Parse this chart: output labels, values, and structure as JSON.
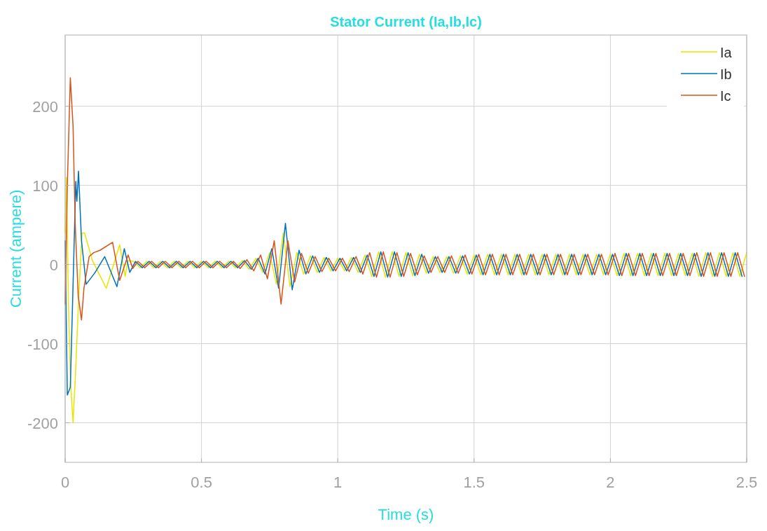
{
  "chart_data": {
    "type": "line",
    "title": "Stator Current (Ia,Ib,Ic)",
    "xlabel": "Time (s)",
    "ylabel": "Current (ampere)",
    "xlim": [
      0,
      2.5
    ],
    "ylim": [
      -250,
      290
    ],
    "xticks": [
      0,
      0.5,
      1,
      1.5,
      2,
      2.5
    ],
    "yticks": [
      -200,
      -100,
      0,
      100,
      200
    ],
    "grid": true,
    "legend": "top right",
    "series": [
      {
        "name": "Ia",
        "color": "#e6e600",
        "x": [
          0,
          0.005,
          0.012,
          0.02,
          0.029,
          0.037,
          0.05,
          0.062,
          0.071,
          0.1,
          0.151,
          0.2,
          0.22,
          0.231,
          0.25,
          0.275,
          0.3,
          0.325,
          0.35,
          0.375,
          0.4,
          0.425,
          0.45,
          0.475,
          0.5,
          0.525,
          0.55,
          0.575,
          0.6,
          0.625,
          0.65,
          0.675,
          0.7,
          0.725,
          0.75,
          0.775,
          0.8,
          0.825,
          0.85,
          0.875,
          0.9,
          0.925,
          0.95,
          0.975,
          1,
          1.025,
          1.05,
          1.075,
          1.1,
          1.125,
          1.15,
          1.175,
          1.2,
          1.225,
          1.25,
          1.275,
          1.3,
          1.325,
          1.35,
          1.375,
          1.4,
          1.425,
          1.45,
          1.475,
          1.5,
          1.525,
          1.55,
          1.575,
          1.6,
          1.625,
          1.65,
          1.675,
          1.7,
          1.725,
          1.75,
          1.775,
          1.8,
          1.825,
          1.85,
          1.875,
          1.9,
          1.925,
          1.95,
          1.975,
          2,
          2.025,
          2.05,
          2.075,
          2.1,
          2.125,
          2.15,
          2.175,
          2.2,
          2.225,
          2.25,
          2.275,
          2.3,
          2.325,
          2.35,
          2.375,
          2.4,
          2.425,
          2.45,
          2.475,
          2.5
        ],
        "values": [
          40,
          110,
          -50,
          -150,
          -200,
          -145,
          -40,
          40,
          40,
          5,
          -30,
          25,
          -15,
          5,
          4,
          -4,
          4,
          -4,
          4,
          -4,
          4,
          -4,
          4,
          -4,
          4,
          -4,
          4,
          -4,
          4,
          -4,
          5,
          -6,
          8,
          -10,
          15,
          -25,
          40,
          -28,
          15,
          -12,
          11,
          -10,
          9,
          -8,
          8,
          -8,
          9,
          -10,
          12,
          -15,
          16,
          -16,
          16,
          -15,
          15,
          -14,
          13,
          -11,
          10,
          -10,
          10,
          -11,
          11,
          -12,
          12,
          -13,
          13,
          -13,
          13,
          -13,
          13,
          -13,
          13,
          -13,
          13,
          -13,
          13,
          -13,
          13,
          -13,
          13,
          -13,
          13,
          -13,
          13,
          -14,
          14,
          -14,
          14,
          -14,
          14,
          -14,
          14,
          -14,
          14,
          -14,
          14,
          -15,
          15,
          -15,
          15,
          -15,
          15,
          -15,
          15
        ]
      },
      {
        "name": "Ib",
        "color": "#0072bd",
        "x": [
          0,
          0.008,
          0.019,
          0.031,
          0.039,
          0.043,
          0.049,
          0.06,
          0.077,
          0.11,
          0.145,
          0.19,
          0.217,
          0.237,
          0.258,
          0.283,
          0.308,
          0.333,
          0.358,
          0.383,
          0.408,
          0.433,
          0.458,
          0.483,
          0.508,
          0.533,
          0.558,
          0.583,
          0.608,
          0.633,
          0.658,
          0.683,
          0.708,
          0.733,
          0.758,
          0.783,
          0.808,
          0.833,
          0.858,
          0.883,
          0.908,
          0.933,
          0.958,
          0.983,
          1.008,
          1.033,
          1.058,
          1.083,
          1.108,
          1.133,
          1.158,
          1.183,
          1.208,
          1.233,
          1.258,
          1.283,
          1.308,
          1.333,
          1.358,
          1.383,
          1.408,
          1.433,
          1.458,
          1.483,
          1.508,
          1.533,
          1.558,
          1.583,
          1.608,
          1.633,
          1.658,
          1.683,
          1.708,
          1.733,
          1.758,
          1.783,
          1.808,
          1.833,
          1.858,
          1.883,
          1.908,
          1.933,
          1.958,
          1.983,
          2.008,
          2.033,
          2.058,
          2.083,
          2.108,
          2.133,
          2.158,
          2.183,
          2.208,
          2.233,
          2.258,
          2.283,
          2.308,
          2.333,
          2.358,
          2.383,
          2.408,
          2.433,
          2.458,
          2.483
        ],
        "values": [
          30,
          -165,
          -155,
          0,
          105,
          80,
          118,
          30,
          -25,
          -10,
          10,
          -28,
          20,
          -10,
          4,
          -4,
          4,
          -4,
          4,
          -4,
          4,
          -4,
          4,
          -4,
          4,
          -4,
          4,
          -4,
          4,
          -4,
          5,
          -6,
          8,
          -12,
          20,
          -30,
          52,
          -32,
          18,
          -12,
          11,
          -10,
          9,
          -8,
          8,
          -8,
          9,
          -10,
          12,
          -15,
          16,
          -16,
          16,
          -15,
          15,
          -14,
          13,
          -11,
          10,
          -10,
          10,
          -11,
          11,
          -12,
          12,
          -13,
          13,
          -13,
          13,
          -13,
          13,
          -13,
          13,
          -13,
          13,
          -13,
          13,
          -13,
          13,
          -13,
          13,
          -13,
          13,
          -13,
          13,
          -14,
          14,
          -14,
          14,
          -14,
          14,
          -14,
          14,
          -14,
          14,
          -14,
          14,
          -15,
          15,
          -15,
          15,
          -15,
          15,
          -15
        ]
      },
      {
        "name": "Ic",
        "color": "#d95319",
        "x": [
          0,
          0.008,
          0.019,
          0.029,
          0.037,
          0.048,
          0.06,
          0.069,
          0.088,
          0.105,
          0.128,
          0.174,
          0.2,
          0.231,
          0.248,
          0.267,
          0.292,
          0.317,
          0.342,
          0.367,
          0.392,
          0.417,
          0.442,
          0.467,
          0.492,
          0.517,
          0.542,
          0.567,
          0.592,
          0.617,
          0.642,
          0.667,
          0.692,
          0.717,
          0.742,
          0.767,
          0.792,
          0.817,
          0.842,
          0.867,
          0.892,
          0.917,
          0.942,
          0.967,
          0.992,
          1.017,
          1.042,
          1.067,
          1.092,
          1.117,
          1.142,
          1.167,
          1.192,
          1.217,
          1.242,
          1.267,
          1.292,
          1.317,
          1.342,
          1.367,
          1.392,
          1.417,
          1.442,
          1.467,
          1.492,
          1.517,
          1.542,
          1.567,
          1.592,
          1.617,
          1.642,
          1.667,
          1.692,
          1.717,
          1.742,
          1.767,
          1.792,
          1.817,
          1.842,
          1.867,
          1.892,
          1.917,
          1.942,
          1.967,
          1.992,
          2.017,
          2.042,
          2.067,
          2.092,
          2.117,
          2.142,
          2.167,
          2.192,
          2.217,
          2.242,
          2.267,
          2.292,
          2.317,
          2.342,
          2.367,
          2.392,
          2.417,
          2.442,
          2.467,
          2.492
        ],
        "values": [
          -50,
          100,
          236,
          175,
          50,
          -40,
          -70,
          -30,
          10,
          15,
          18,
          28,
          -20,
          12,
          -5,
          4,
          -4,
          4,
          -4,
          4,
          -4,
          4,
          -4,
          4,
          -4,
          4,
          -4,
          4,
          -4,
          4,
          -5,
          6,
          -8,
          12,
          -18,
          30,
          -50,
          30,
          -22,
          14,
          -11,
          10,
          -9,
          8,
          -8,
          8,
          -9,
          10,
          -12,
          15,
          -16,
          16,
          -16,
          15,
          -15,
          14,
          -13,
          11,
          -10,
          10,
          -10,
          11,
          -11,
          12,
          -12,
          13,
          -13,
          13,
          -13,
          13,
          -13,
          13,
          -13,
          13,
          -13,
          13,
          -13,
          13,
          -13,
          13,
          -13,
          13,
          -13,
          13,
          -13,
          14,
          -14,
          14,
          -14,
          14,
          -14,
          14,
          -14,
          14,
          -14,
          14,
          -14,
          15,
          -15,
          15,
          -15,
          15,
          -15,
          15,
          -15
        ]
      }
    ]
  }
}
